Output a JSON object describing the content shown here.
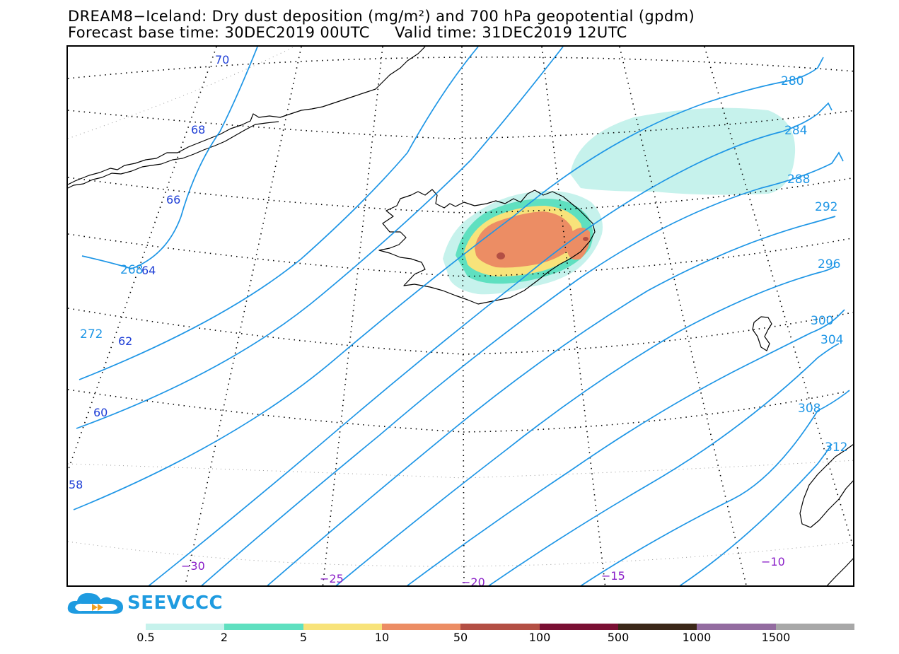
{
  "header": {
    "title_line_1": "DREAM8−Iceland: Dry dust deposition (mg/m²) and 700 hPa geopotential (gpdm)",
    "title_line_2": "Forecast base time: 30DEC2019 00UTC     Valid time: 31DEC2019 12UTC"
  },
  "map": {
    "geopotential_labels": [
      "268",
      "272",
      "280",
      "284",
      "288",
      "292",
      "296",
      "300",
      "304",
      "308",
      "312"
    ],
    "latitude_labels": [
      "70",
      "68",
      "66",
      "64",
      "62",
      "60",
      "58"
    ],
    "longitude_labels": [
      "−30",
      "−25",
      "−20",
      "−15",
      "−10"
    ],
    "colors": {
      "contour": "#1e96e6",
      "lat_label": "#1f3fd6",
      "lon_label": "#8a1fc8",
      "coast": "#000000",
      "grid": "#000000"
    }
  },
  "legend": {
    "colors": [
      "#c6f2ec",
      "#5fe0c0",
      "#f8e37a",
      "#ec8d64",
      "#b34f44",
      "#7a0f33",
      "#3b2718",
      "#936ca0",
      "#a8a8a8"
    ],
    "labels": [
      "0.5",
      "2",
      "5",
      "10",
      "50",
      "100",
      "500",
      "1000",
      "1500"
    ]
  },
  "logo": {
    "text": "SEEVCCC",
    "colors": {
      "cloud": "#1e9be0",
      "arrow": "#f0a020"
    }
  }
}
